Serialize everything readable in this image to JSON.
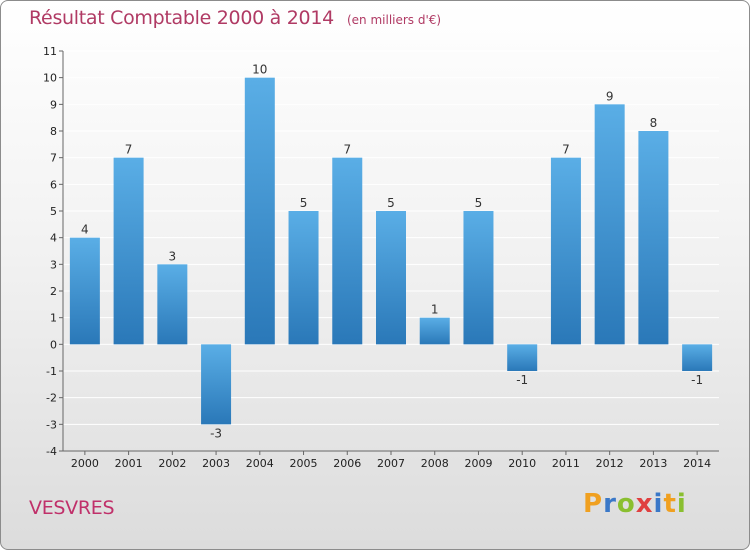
{
  "chart_data": {
    "type": "bar",
    "title": "Résultat Comptable 2000 à 2014",
    "unit": "(en milliers d'€)",
    "categories": [
      "2000",
      "2001",
      "2002",
      "2003",
      "2004",
      "2005",
      "2006",
      "2007",
      "2008",
      "2009",
      "2010",
      "2011",
      "2012",
      "2013",
      "2014"
    ],
    "values": [
      4,
      7,
      3,
      -3,
      10,
      5,
      7,
      5,
      1,
      5,
      -1,
      7,
      9,
      8,
      -1
    ],
    "ylim": [
      -4,
      11
    ],
    "yticks": [
      -4,
      -3,
      -2,
      -1,
      0,
      1,
      2,
      3,
      4,
      5,
      6,
      7,
      8,
      9,
      10,
      11
    ],
    "xlabel": "",
    "ylabel": "",
    "bar_color": "#4a9fdc"
  },
  "footer": {
    "commune": "VESVRES",
    "logo_letters": [
      "P",
      "r",
      "o",
      "x",
      "i",
      "t",
      "i"
    ],
    "logo_colors": [
      "#f0a020",
      "#3a78c8",
      "#8abf30",
      "#e04040",
      "#3a78c8",
      "#f0a020",
      "#8abf30"
    ]
  }
}
